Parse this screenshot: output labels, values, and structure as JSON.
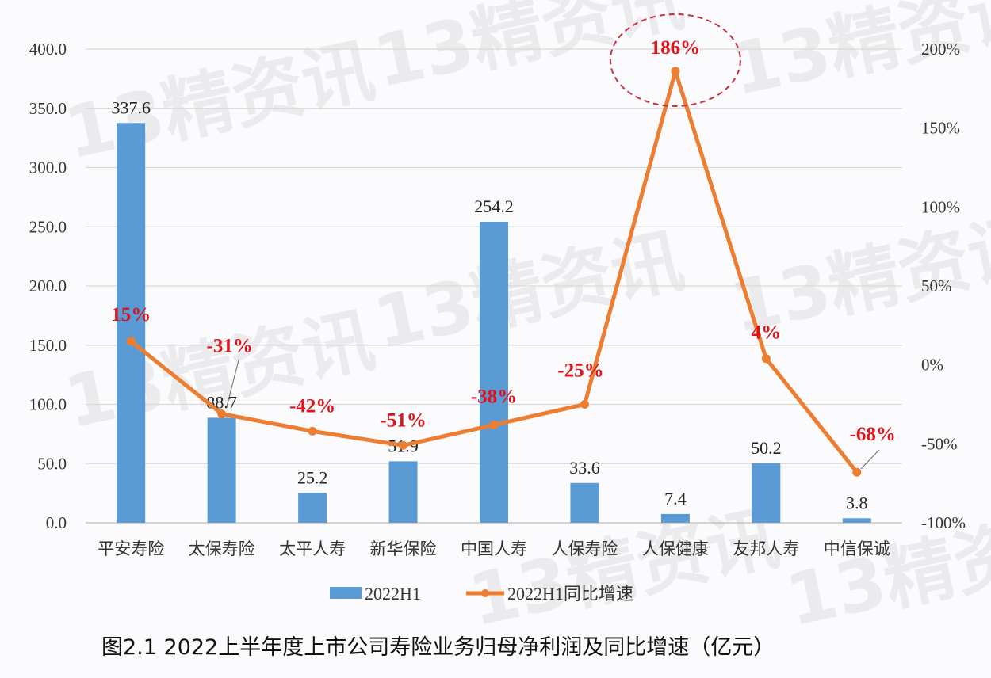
{
  "chart_data": {
    "type": "bar+line",
    "title": "图2.1  2022上半年度上市公司寿险业务归母净利润及同比增速（亿元）",
    "categories": [
      "平安寿险",
      "太保寿险",
      "太平人寿",
      "新华保险",
      "中国人寿",
      "人保寿险",
      "人保健康",
      "友邦人寿",
      "中信保诚"
    ],
    "series": [
      {
        "name": "2022H1",
        "type": "bar",
        "axis": "left",
        "color": "#5b9bd5",
        "values": [
          337.6,
          88.7,
          25.2,
          51.9,
          254.2,
          33.6,
          7.4,
          50.2,
          3.8
        ],
        "labels": [
          "337.6",
          "88.7",
          "25.2",
          "51.9",
          "254.2",
          "33.6",
          "7.4",
          "50.2",
          "3.8"
        ]
      },
      {
        "name": "2022H1同比增速",
        "type": "line",
        "axis": "right",
        "color": "#ed7d31",
        "values": [
          15,
          -31,
          -42,
          -51,
          -38,
          -25,
          186,
          4,
          -68
        ],
        "labels": [
          "15%",
          "-31%",
          "-42%",
          "-51%",
          "-38%",
          "-25%",
          "186%",
          "4%",
          "-68%"
        ]
      }
    ],
    "left_axis": {
      "ylim": [
        0,
        400
      ],
      "ticks": [
        "0.0",
        "50.0",
        "100.0",
        "150.0",
        "200.0",
        "250.0",
        "300.0",
        "350.0",
        "400.0"
      ]
    },
    "right_axis": {
      "ylim": [
        -100,
        200
      ],
      "ticks": [
        "-100%",
        "-50%",
        "0%",
        "50%",
        "100%",
        "150%",
        "200%"
      ]
    },
    "grid": true,
    "legend_position": "bottom",
    "annotation": "dashed circle highlighting 186%",
    "label_color": "#e0131b"
  },
  "watermark": {
    "number": "13",
    "text": "精资讯"
  }
}
